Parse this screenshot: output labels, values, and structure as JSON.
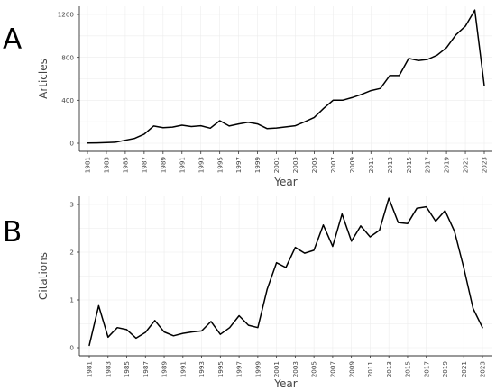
{
  "chart_data": [
    {
      "panel": "A",
      "type": "line",
      "xlabel": "Year",
      "ylabel": "Articles",
      "xlim": [
        1981,
        2023
      ],
      "ylim": [
        0,
        1200
      ],
      "x_ticks": [
        1981,
        1983,
        1985,
        1987,
        1989,
        1991,
        1993,
        1995,
        1997,
        1999,
        2001,
        2003,
        2005,
        2007,
        2009,
        2011,
        2013,
        2015,
        2017,
        2019,
        2021,
        2023
      ],
      "y_ticks": [
        0,
        400,
        800,
        1200
      ],
      "grid": true,
      "series": [
        {
          "x": [
            1981,
            1982,
            1983,
            1984,
            1985,
            1986,
            1987,
            1988,
            1989,
            1990,
            1991,
            1992,
            1993,
            1994,
            1995,
            1996,
            1997,
            1998,
            1999,
            2000,
            2001,
            2002,
            2003,
            2004,
            2005,
            2006,
            2007,
            2008,
            2009,
            2010,
            2011,
            2012,
            2013,
            2014,
            2015,
            2016,
            2017,
            2018,
            2019,
            2020,
            2021,
            2022,
            2023
          ],
          "values": [
            2,
            3,
            7,
            10,
            28,
            45,
            85,
            160,
            145,
            150,
            168,
            155,
            163,
            140,
            210,
            160,
            180,
            195,
            180,
            137,
            142,
            152,
            163,
            200,
            240,
            325,
            400,
            400,
            425,
            455,
            490,
            510,
            630,
            630,
            790,
            770,
            780,
            820,
            890,
            1010,
            1090,
            1240,
            535
          ]
        }
      ]
    },
    {
      "panel": "B",
      "type": "line",
      "xlabel": "Year",
      "ylabel": "Citations",
      "xlim": [
        1981,
        2023
      ],
      "ylim": [
        0,
        3
      ],
      "x_ticks": [
        1981,
        1983,
        1985,
        1987,
        1989,
        1991,
        1993,
        1995,
        1997,
        1999,
        2001,
        2003,
        2005,
        2007,
        2009,
        2011,
        2013,
        2015,
        2017,
        2019,
        2021,
        2023
      ],
      "y_ticks": [
        0,
        1,
        2,
        3
      ],
      "grid": true,
      "series": [
        {
          "x": [
            1981,
            1982,
            1983,
            1984,
            1985,
            1986,
            1987,
            1988,
            1989,
            1990,
            1991,
            1992,
            1993,
            1994,
            1995,
            1996,
            1997,
            1998,
            1999,
            2000,
            2001,
            2002,
            2003,
            2004,
            2005,
            2006,
            2007,
            2008,
            2009,
            2010,
            2011,
            2012,
            2013,
            2014,
            2015,
            2016,
            2017,
            2018,
            2019,
            2020,
            2021,
            2022,
            2023
          ],
          "values": [
            0.05,
            0.88,
            0.22,
            0.42,
            0.38,
            0.2,
            0.32,
            0.57,
            0.33,
            0.25,
            0.3,
            0.33,
            0.35,
            0.55,
            0.28,
            0.42,
            0.67,
            0.47,
            0.42,
            1.22,
            1.78,
            1.68,
            2.1,
            1.98,
            2.04,
            2.57,
            2.12,
            2.8,
            2.23,
            2.55,
            2.32,
            2.46,
            3.13,
            2.62,
            2.6,
            2.92,
            2.95,
            2.65,
            2.87,
            2.44,
            1.68,
            0.82,
            0.42
          ]
        }
      ]
    }
  ]
}
